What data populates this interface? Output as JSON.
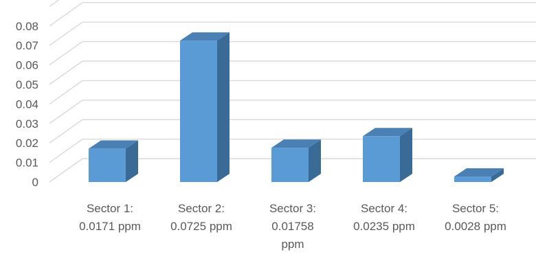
{
  "chart_data": {
    "type": "bar",
    "style": "3d-column",
    "categories": [
      [
        "Sector 1:",
        "0.0171 ppm"
      ],
      [
        "Sector 2:",
        "0.0725 ppm"
      ],
      [
        "Sector 3:",
        "0.01758",
        "ppm"
      ],
      [
        "Sector 4:",
        "0.0235 ppm"
      ],
      [
        "Sector 5:",
        "0.0028 ppm"
      ]
    ],
    "values": [
      0.0171,
      0.0725,
      0.01758,
      0.0235,
      0.0028
    ],
    "y_ticks": [
      "0",
      "0.01",
      "0.02",
      "0.03",
      "0.04",
      "0.05",
      "0.06",
      "0.07",
      "0.08"
    ],
    "ylim": [
      0,
      0.08
    ],
    "grid": true,
    "legend": "none",
    "colors": {
      "bar_front": "#5b9bd5",
      "bar_side": "#3a6a96",
      "bar_top": "#4a80b4",
      "grid": "#d9d9d9",
      "text": "#595959"
    }
  }
}
